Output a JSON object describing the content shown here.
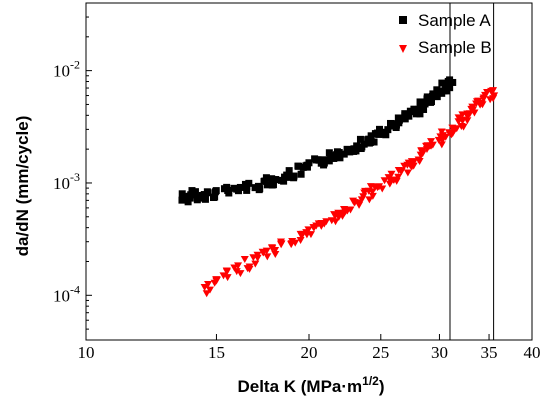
{
  "chart_data": {
    "type": "scatter",
    "xlabel": "Delta K (MPa·m",
    "xlabel_sup": "1/2",
    "xlabel_close": ")",
    "ylabel": "da/dN  (mm/cycle)",
    "x_scale": "log",
    "y_scale": "log",
    "xlim": [
      10,
      40
    ],
    "ylim": [
      4e-05,
      0.04
    ],
    "x_ticks": [
      10,
      15,
      20,
      25,
      30,
      35,
      40
    ],
    "x_tick_labels": [
      "10",
      "15",
      "20",
      "25",
      "30",
      "35",
      "40"
    ],
    "y_ticks": [
      0.0001,
      0.001,
      0.01
    ],
    "y_tick_labels": [
      {
        "base": "10",
        "exp": "-4"
      },
      {
        "base": "10",
        "exp": "-3"
      },
      {
        "base": "10",
        "exp": "-2"
      }
    ],
    "grid": false,
    "legend_position": "top-right",
    "series": [
      {
        "name": "Sample A",
        "marker": "square",
        "color": "#000000",
        "points": [
          [
            13.6,
            0.00076
          ],
          [
            13.8,
            0.00072
          ],
          [
            14.0,
            0.00078
          ],
          [
            14.3,
            0.00074
          ],
          [
            14.6,
            0.00079
          ],
          [
            15.0,
            0.00081
          ],
          [
            15.5,
            0.00084
          ],
          [
            16.0,
            0.00088
          ],
          [
            16.5,
            0.00092
          ],
          [
            17.0,
            0.00096
          ],
          [
            17.5,
            0.00101
          ],
          [
            18.0,
            0.00106
          ],
          [
            18.5,
            0.00112
          ],
          [
            19.0,
            0.0012
          ],
          [
            19.5,
            0.00128
          ],
          [
            20.0,
            0.00138
          ],
          [
            20.5,
            0.00148
          ],
          [
            21.0,
            0.00158
          ],
          [
            21.5,
            0.0017
          ],
          [
            22.0,
            0.00182
          ],
          [
            22.5,
            0.00196
          ],
          [
            23.0,
            0.0021
          ],
          [
            23.5,
            0.00224
          ],
          [
            24.0,
            0.0024
          ],
          [
            24.5,
            0.00256
          ],
          [
            25.0,
            0.00272
          ],
          [
            25.5,
            0.00292
          ],
          [
            26.0,
            0.00316
          ],
          [
            26.5,
            0.00344
          ],
          [
            27.0,
            0.00376
          ],
          [
            27.5,
            0.00412
          ],
          [
            28.0,
            0.00452
          ],
          [
            28.5,
            0.00496
          ],
          [
            29.0,
            0.00544
          ],
          [
            29.5,
            0.006
          ],
          [
            30.0,
            0.0066
          ],
          [
            30.5,
            0.0072
          ],
          [
            31.0,
            0.0076
          ]
        ]
      },
      {
        "name": "Sample B",
        "marker": "triangle-down",
        "color": "#ff0000",
        "points": [
          [
            14.6,
            0.000115
          ],
          [
            15.0,
            0.00013
          ],
          [
            15.5,
            0.00015
          ],
          [
            16.0,
            0.00017
          ],
          [
            16.5,
            0.00019
          ],
          [
            17.0,
            0.00021
          ],
          [
            17.5,
            0.000232
          ],
          [
            18.0,
            0.000255
          ],
          [
            18.5,
            0.00028
          ],
          [
            19.0,
            0.000305
          ],
          [
            19.5,
            0.000335
          ],
          [
            20.0,
            0.000365
          ],
          [
            20.5,
            0.0004
          ],
          [
            21.0,
            0.00044
          ],
          [
            21.5,
            0.000485
          ],
          [
            22.0,
            0.00053
          ],
          [
            22.5,
            0.00058
          ],
          [
            23.0,
            0.00064
          ],
          [
            23.5,
            0.0007
          ],
          [
            24.0,
            0.00077
          ],
          [
            24.5,
            0.00085
          ],
          [
            25.0,
            0.00093
          ],
          [
            25.5,
            0.00102
          ],
          [
            26.0,
            0.00113
          ],
          [
            26.5,
            0.00124
          ],
          [
            27.0,
            0.00137
          ],
          [
            27.5,
            0.0015
          ],
          [
            28.0,
            0.00165
          ],
          [
            28.5,
            0.00182
          ],
          [
            29.0,
            0.002
          ],
          [
            29.5,
            0.0022
          ],
          [
            30.0,
            0.00242
          ],
          [
            30.5,
            0.00266
          ],
          [
            31.0,
            0.00292
          ],
          [
            31.5,
            0.0032
          ],
          [
            32.0,
            0.0035
          ],
          [
            32.5,
            0.00385
          ],
          [
            33.0,
            0.0042
          ],
          [
            33.5,
            0.0046
          ],
          [
            34.0,
            0.005
          ],
          [
            34.5,
            0.0055
          ],
          [
            35.0,
            0.006
          ],
          [
            35.5,
            0.0062
          ]
        ]
      }
    ],
    "reference_lines": [
      31.0,
      35.5
    ]
  }
}
